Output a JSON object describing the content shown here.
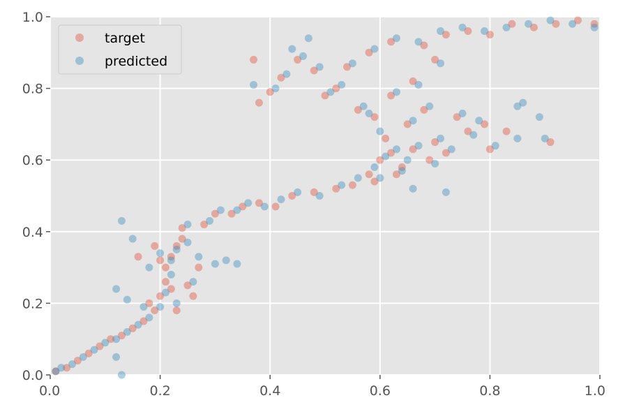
{
  "chart_data": {
    "type": "scatter",
    "title": "",
    "xlabel": "",
    "ylabel": "",
    "xlim": [
      0.0,
      1.0
    ],
    "ylim": [
      0.0,
      1.0
    ],
    "grid": true,
    "legend_position": "top-left",
    "x_ticks": [
      "0.0",
      "0.2",
      "0.4",
      "0.6",
      "0.8",
      "1.0"
    ],
    "y_ticks": [
      "0.0",
      "0.2",
      "0.4",
      "0.6",
      "0.8",
      "1.0"
    ],
    "colors": {
      "target": "#E24A33",
      "predicted": "#348ABD",
      "background": "#E5E5E5",
      "grid": "#FFFFFF"
    },
    "series": [
      {
        "name": "target",
        "color": "#E24A33",
        "points": [
          [
            0.01,
            0.01
          ],
          [
            0.03,
            0.02
          ],
          [
            0.05,
            0.04
          ],
          [
            0.07,
            0.06
          ],
          [
            0.09,
            0.08
          ],
          [
            0.11,
            0.1
          ],
          [
            0.13,
            0.11
          ],
          [
            0.15,
            0.13
          ],
          [
            0.17,
            0.15
          ],
          [
            0.19,
            0.18
          ],
          [
            0.2,
            0.22
          ],
          [
            0.21,
            0.26
          ],
          [
            0.21,
            0.3
          ],
          [
            0.22,
            0.33
          ],
          [
            0.23,
            0.36
          ],
          [
            0.24,
            0.38
          ],
          [
            0.2,
            0.32
          ],
          [
            0.19,
            0.36
          ],
          [
            0.22,
            0.24
          ],
          [
            0.25,
            0.25
          ],
          [
            0.26,
            0.22
          ],
          [
            0.24,
            0.41
          ],
          [
            0.28,
            0.42
          ],
          [
            0.3,
            0.45
          ],
          [
            0.33,
            0.45
          ],
          [
            0.35,
            0.47
          ],
          [
            0.38,
            0.48
          ],
          [
            0.41,
            0.47
          ],
          [
            0.44,
            0.5
          ],
          [
            0.48,
            0.51
          ],
          [
            0.52,
            0.52
          ],
          [
            0.55,
            0.53
          ],
          [
            0.58,
            0.56
          ],
          [
            0.6,
            0.6
          ],
          [
            0.62,
            0.62
          ],
          [
            0.64,
            0.58
          ],
          [
            0.66,
            0.63
          ],
          [
            0.7,
            0.65
          ],
          [
            0.72,
            0.62
          ],
          [
            0.76,
            0.68
          ],
          [
            0.8,
            0.63
          ],
          [
            0.83,
            0.68
          ],
          [
            0.91,
            0.65
          ],
          [
            0.61,
            0.66
          ],
          [
            0.59,
            0.72
          ],
          [
            0.62,
            0.78
          ],
          [
            0.66,
            0.82
          ],
          [
            0.56,
            0.74
          ],
          [
            0.52,
            0.8
          ],
          [
            0.48,
            0.85
          ],
          [
            0.45,
            0.88
          ],
          [
            0.42,
            0.83
          ],
          [
            0.4,
            0.79
          ],
          [
            0.37,
            0.88
          ],
          [
            0.38,
            0.76
          ],
          [
            0.5,
            0.78
          ],
          [
            0.54,
            0.86
          ],
          [
            0.58,
            0.9
          ],
          [
            0.62,
            0.93
          ],
          [
            0.68,
            0.92
          ],
          [
            0.72,
            0.95
          ],
          [
            0.76,
            0.96
          ],
          [
            0.8,
            0.95
          ],
          [
            0.84,
            0.98
          ],
          [
            0.88,
            0.97
          ],
          [
            0.92,
            0.98
          ],
          [
            0.96,
            0.99
          ],
          [
            0.99,
            0.98
          ],
          [
            0.7,
            0.88
          ],
          [
            0.65,
            0.7
          ],
          [
            0.68,
            0.74
          ],
          [
            0.74,
            0.72
          ],
          [
            0.79,
            0.7
          ],
          [
            0.69,
            0.6
          ],
          [
            0.59,
            0.54
          ],
          [
            0.63,
            0.56
          ],
          [
            0.27,
            0.3
          ],
          [
            0.18,
            0.2
          ],
          [
            0.16,
            0.33
          ],
          [
            0.23,
            0.18
          ]
        ]
      },
      {
        "name": "predicted",
        "color": "#348ABD",
        "points": [
          [
            0.01,
            0.01
          ],
          [
            0.02,
            0.02
          ],
          [
            0.04,
            0.03
          ],
          [
            0.06,
            0.05
          ],
          [
            0.08,
            0.07
          ],
          [
            0.1,
            0.09
          ],
          [
            0.12,
            0.1
          ],
          [
            0.14,
            0.12
          ],
          [
            0.16,
            0.14
          ],
          [
            0.18,
            0.16
          ],
          [
            0.2,
            0.19
          ],
          [
            0.21,
            0.23
          ],
          [
            0.22,
            0.28
          ],
          [
            0.22,
            0.32
          ],
          [
            0.23,
            0.35
          ],
          [
            0.25,
            0.37
          ],
          [
            0.2,
            0.34
          ],
          [
            0.18,
            0.3
          ],
          [
            0.13,
            0.43
          ],
          [
            0.15,
            0.38
          ],
          [
            0.14,
            0.21
          ],
          [
            0.12,
            0.24
          ],
          [
            0.23,
            0.2
          ],
          [
            0.26,
            0.26
          ],
          [
            0.27,
            0.33
          ],
          [
            0.3,
            0.31
          ],
          [
            0.32,
            0.32
          ],
          [
            0.25,
            0.42
          ],
          [
            0.29,
            0.43
          ],
          [
            0.31,
            0.46
          ],
          [
            0.34,
            0.46
          ],
          [
            0.36,
            0.48
          ],
          [
            0.39,
            0.47
          ],
          [
            0.42,
            0.49
          ],
          [
            0.45,
            0.51
          ],
          [
            0.49,
            0.5
          ],
          [
            0.53,
            0.53
          ],
          [
            0.56,
            0.55
          ],
          [
            0.59,
            0.58
          ],
          [
            0.61,
            0.61
          ],
          [
            0.63,
            0.63
          ],
          [
            0.65,
            0.6
          ],
          [
            0.67,
            0.64
          ],
          [
            0.71,
            0.66
          ],
          [
            0.73,
            0.63
          ],
          [
            0.77,
            0.67
          ],
          [
            0.81,
            0.64
          ],
          [
            0.85,
            0.66
          ],
          [
            0.9,
            0.66
          ],
          [
            0.89,
            0.72
          ],
          [
            0.85,
            0.75
          ],
          [
            0.86,
            0.76
          ],
          [
            0.6,
            0.68
          ],
          [
            0.58,
            0.73
          ],
          [
            0.63,
            0.79
          ],
          [
            0.67,
            0.81
          ],
          [
            0.57,
            0.75
          ],
          [
            0.53,
            0.81
          ],
          [
            0.49,
            0.86
          ],
          [
            0.46,
            0.89
          ],
          [
            0.43,
            0.84
          ],
          [
            0.41,
            0.8
          ],
          [
            0.37,
            0.81
          ],
          [
            0.44,
            0.91
          ],
          [
            0.47,
            0.94
          ],
          [
            0.51,
            0.79
          ],
          [
            0.55,
            0.87
          ],
          [
            0.59,
            0.91
          ],
          [
            0.63,
            0.94
          ],
          [
            0.67,
            0.93
          ],
          [
            0.71,
            0.96
          ],
          [
            0.75,
            0.97
          ],
          [
            0.79,
            0.96
          ],
          [
            0.83,
            0.97
          ],
          [
            0.87,
            0.98
          ],
          [
            0.91,
            0.99
          ],
          [
            0.95,
            0.98
          ],
          [
            0.99,
            0.97
          ],
          [
            0.71,
            0.87
          ],
          [
            0.66,
            0.71
          ],
          [
            0.69,
            0.75
          ],
          [
            0.75,
            0.73
          ],
          [
            0.78,
            0.71
          ],
          [
            0.7,
            0.59
          ],
          [
            0.72,
            0.51
          ],
          [
            0.66,
            0.52
          ],
          [
            0.6,
            0.55
          ],
          [
            0.64,
            0.57
          ],
          [
            0.34,
            0.31
          ],
          [
            0.17,
            0.19
          ],
          [
            0.12,
            0.05
          ],
          [
            0.13,
            0.0
          ]
        ]
      }
    ]
  }
}
